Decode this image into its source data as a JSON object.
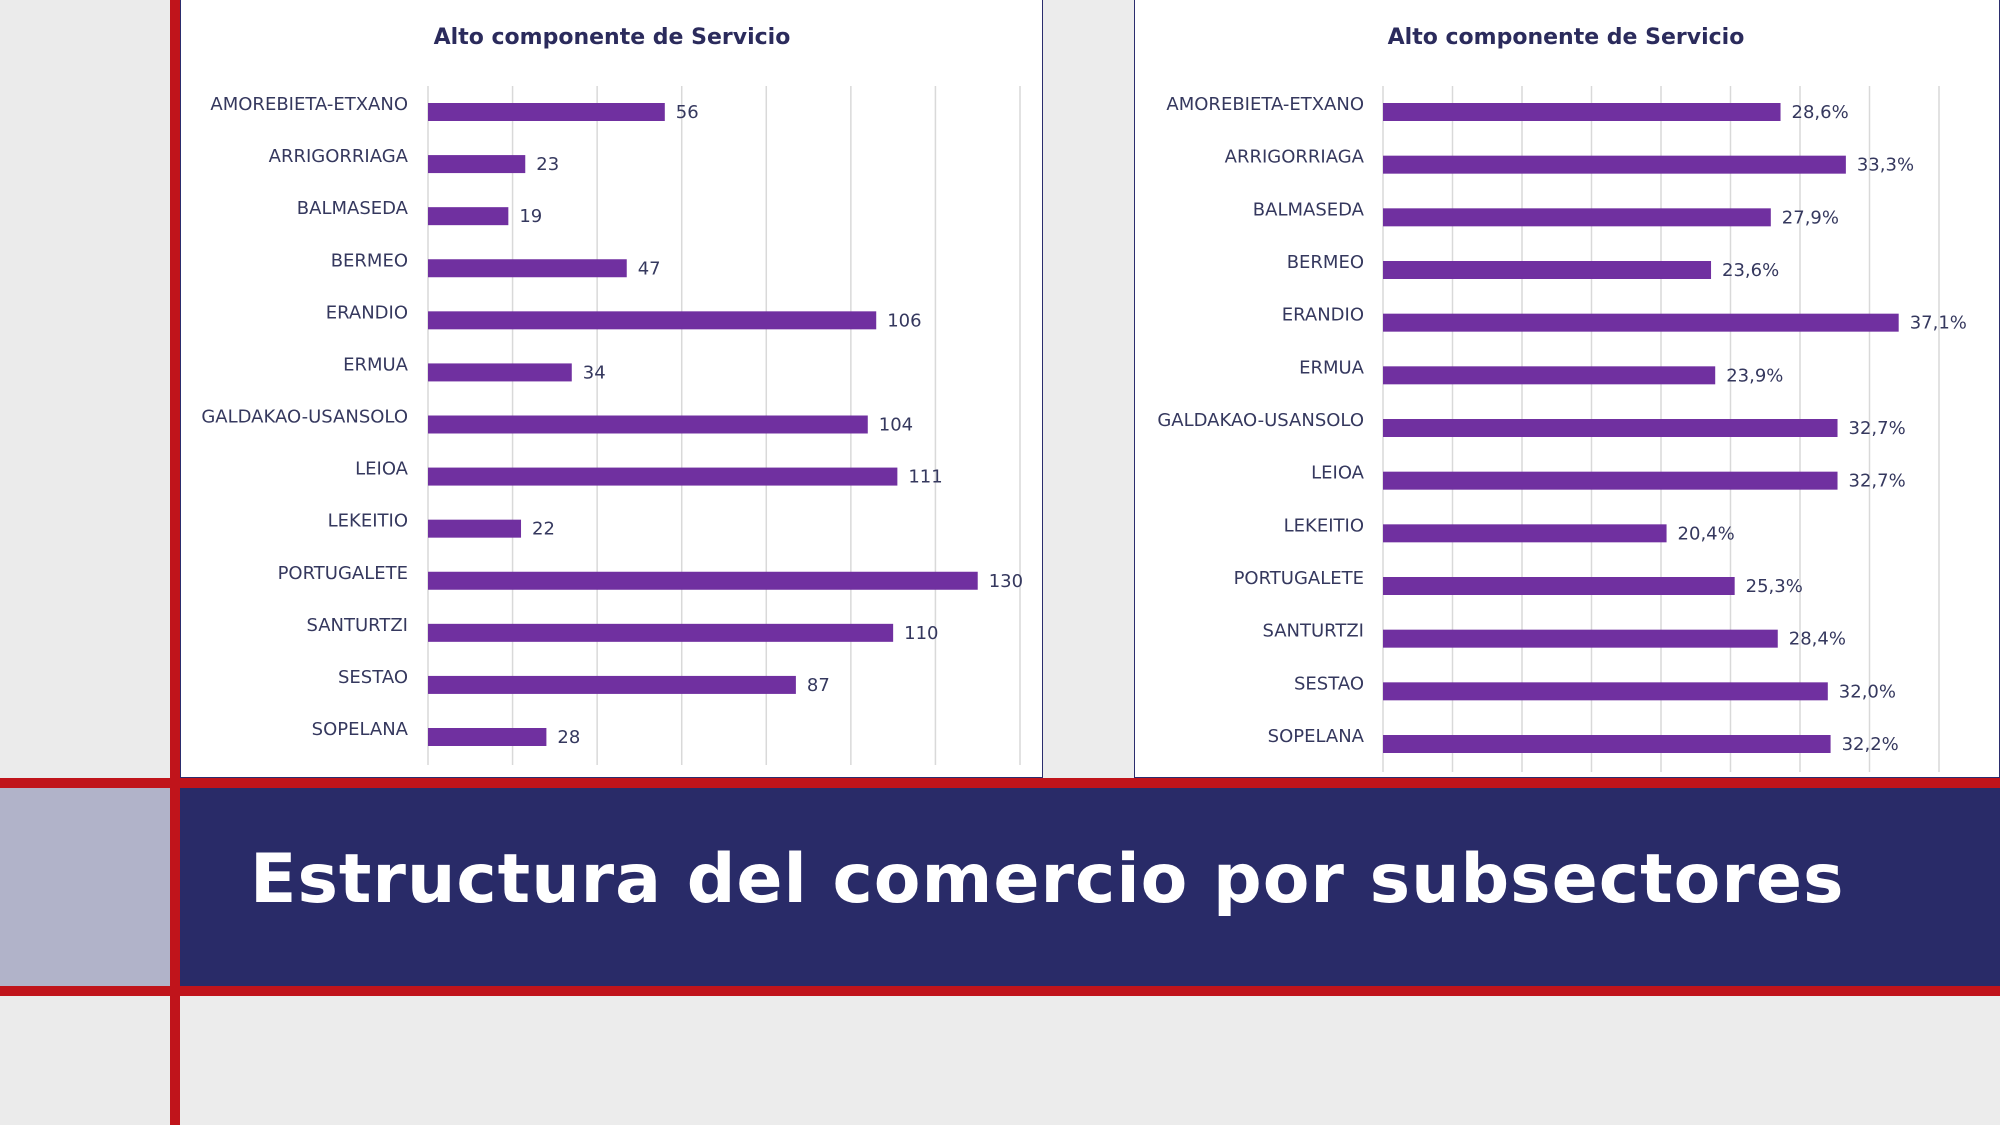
{
  "slide": {
    "title": "Estructura del comercio por subsectores"
  },
  "colors": {
    "bar": "#7030a0",
    "banner": "#292b68",
    "accent_red": "#c0141b",
    "text": "#35385e"
  },
  "chart_data": [
    {
      "type": "bar",
      "orientation": "horizontal",
      "title": "Alto componente de Servicio",
      "categories": [
        "AMOREBIETA-ETXANO",
        "ARRIGORRIAGA",
        "BALMASEDA",
        "BERMEO",
        "ERANDIO",
        "ERMUA",
        "GALDAKAO-USANSOLO",
        "LEIOA",
        "LEKEITIO",
        "PORTUGALETE",
        "SANTURTZI",
        "SESTAO",
        "SOPELANA"
      ],
      "values": [
        56,
        23,
        19,
        47,
        106,
        34,
        104,
        111,
        22,
        130,
        110,
        87,
        28
      ],
      "value_labels": [
        "56",
        "23",
        "19",
        "47",
        "106",
        "34",
        "104",
        "111",
        "22",
        "130",
        "110",
        "87",
        "28"
      ],
      "xlim": [
        0,
        140
      ],
      "grid_step": 20,
      "grid": true
    },
    {
      "type": "bar",
      "orientation": "horizontal",
      "title": "Alto componente de Servicio",
      "categories": [
        "AMOREBIETA-ETXANO",
        "ARRIGORRIAGA",
        "BALMASEDA",
        "BERMEO",
        "ERANDIO",
        "ERMUA",
        "GALDAKAO-USANSOLO",
        "LEIOA",
        "LEKEITIO",
        "PORTUGALETE",
        "SANTURTZI",
        "SESTAO",
        "SOPELANA"
      ],
      "values": [
        28.6,
        33.3,
        27.9,
        23.6,
        37.1,
        23.9,
        32.7,
        32.7,
        20.4,
        25.3,
        28.4,
        32.0,
        32.2
      ],
      "value_labels": [
        "28,6%",
        "33,3%",
        "27,9%",
        "23,6%",
        "37,1%",
        "23,9%",
        "32,7%",
        "32,7%",
        "20,4%",
        "25,3%",
        "28,4%",
        "32,0%",
        "32,2%"
      ],
      "xlim": [
        0,
        40
      ],
      "grid_step": 5,
      "grid": true
    }
  ]
}
